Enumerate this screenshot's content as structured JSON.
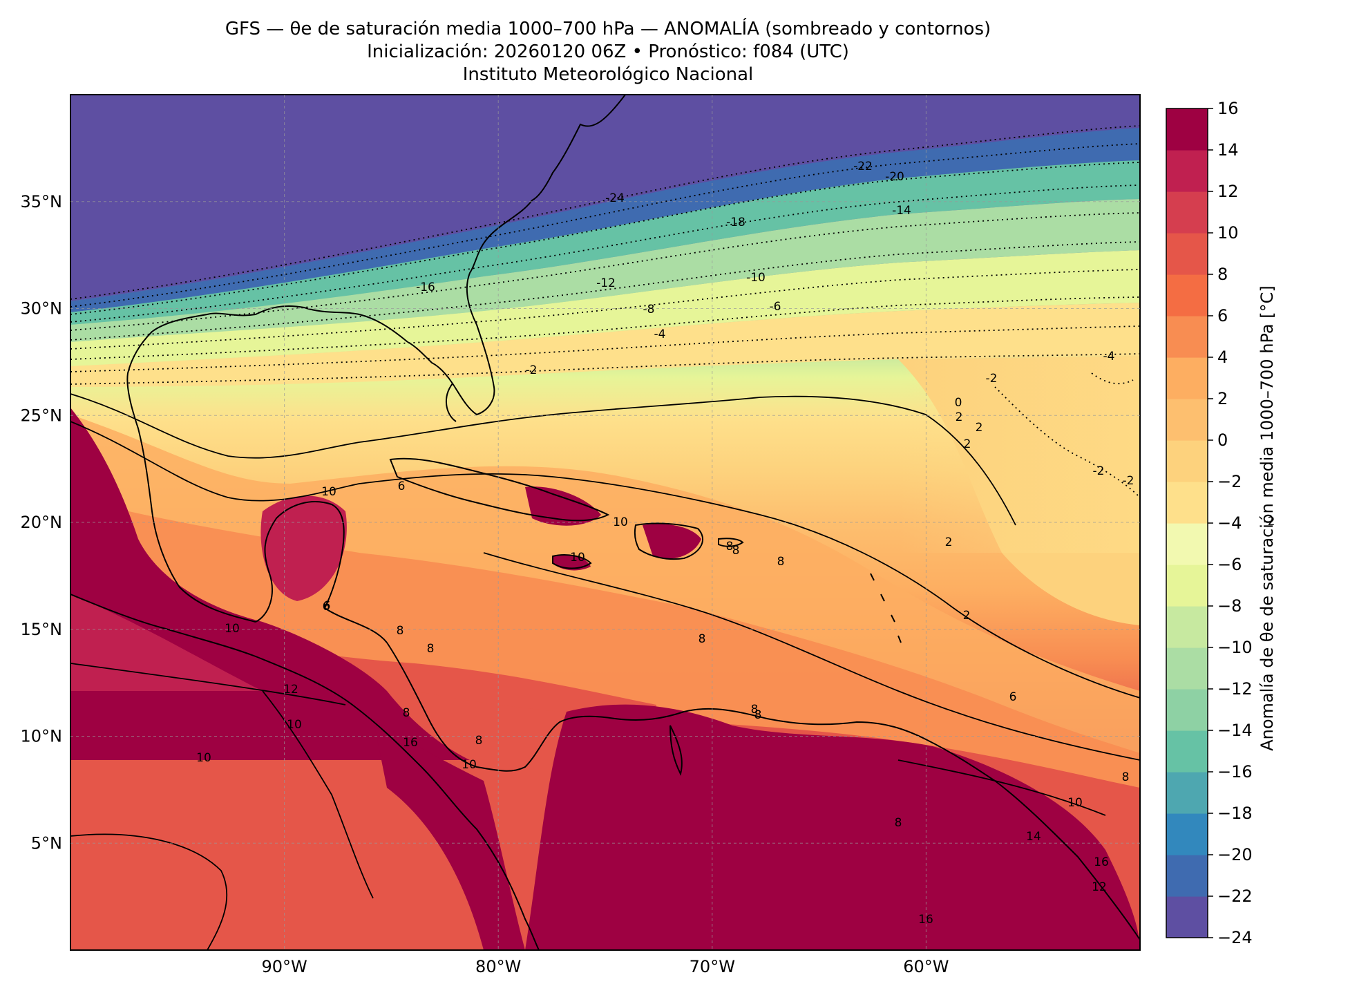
{
  "titles": {
    "line1": "GFS — θe de saturación media 1000–700 hPa — ANOMALÍA (sombreado y contornos)",
    "line2": "Inicialización: 20260120 06Z   •   Pronóstico: f084 (UTC)",
    "line3": "Instituto Meteorológico Nacional"
  },
  "map": {
    "lon_ticks": [
      "90°W",
      "80°W",
      "70°W",
      "60°W"
    ],
    "lat_ticks": [
      "35°N",
      "30°N",
      "25°N",
      "20°N",
      "15°N",
      "10°N",
      "5°N"
    ],
    "region": {
      "lon": [
        -100,
        -50
      ],
      "lat": [
        0,
        40
      ]
    },
    "gridlines": true,
    "contour_labels": [
      "-24",
      "-22",
      "-20",
      "-18",
      "-16",
      "-14",
      "-12",
      "-10",
      "-8",
      "-6",
      "-4",
      "-2",
      "-2",
      "-2",
      "-2",
      "-2",
      "-4",
      "0",
      "2",
      "2",
      "2",
      "2",
      "2",
      "6",
      "6",
      "6",
      "8",
      "8",
      "8",
      "8",
      "8",
      "8",
      "8",
      "8",
      "8",
      "8",
      "8",
      "10",
      "10",
      "10",
      "10",
      "10",
      "10",
      "10",
      "10",
      "12",
      "12",
      "16",
      "16",
      "16",
      "14",
      "8",
      "6"
    ]
  },
  "colorbar": {
    "label": "Anomalía de θe de saturación media 1000–700 hPa [°C]",
    "ticks": [
      "16",
      "14",
      "12",
      "10",
      "8",
      "6",
      "4",
      "2",
      "0",
      "−2",
      "−4",
      "−6",
      "−8",
      "−10",
      "−12",
      "−14",
      "−16",
      "−18",
      "−20",
      "−22",
      "−24"
    ],
    "range": [
      -24,
      16
    ],
    "step": 2,
    "colors": [
      "#5e4fa2",
      "#3f6bb0",
      "#3288bd",
      "#4ea7b0",
      "#66c2a5",
      "#8ed1a4",
      "#abdda4",
      "#c7e9a0",
      "#e6f598",
      "#f2f9b0",
      "#fee08b",
      "#fdd27d",
      "#fdbf6f",
      "#fdae61",
      "#f88d52",
      "#f46d43",
      "#e55649",
      "#d53e4f",
      "#c02050",
      "#9e0142"
    ]
  }
}
